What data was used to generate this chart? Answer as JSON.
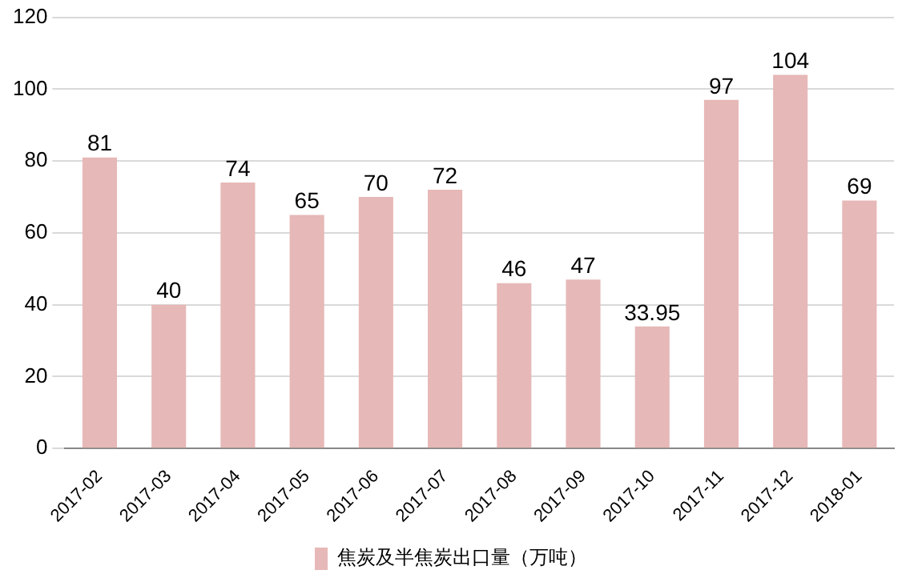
{
  "chart_data": {
    "type": "bar",
    "categories": [
      "2017-02",
      "2017-03",
      "2017-04",
      "2017-05",
      "2017-06",
      "2017-07",
      "2017-08",
      "2017-09",
      "2017-10",
      "2017-11",
      "2017-12",
      "2018-01"
    ],
    "series": [
      {
        "name": "焦炭及半焦炭出口量（万吨）",
        "color": "#e6b8b7",
        "values": [
          81,
          40,
          74,
          65,
          70,
          72,
          46,
          47,
          33.95,
          97,
          104,
          69
        ]
      }
    ],
    "ylim": [
      0,
      120
    ],
    "yticks": [
      0,
      20,
      40,
      60,
      80,
      100,
      120
    ],
    "grid": "y",
    "legend": "bottom",
    "data_labels": true
  }
}
